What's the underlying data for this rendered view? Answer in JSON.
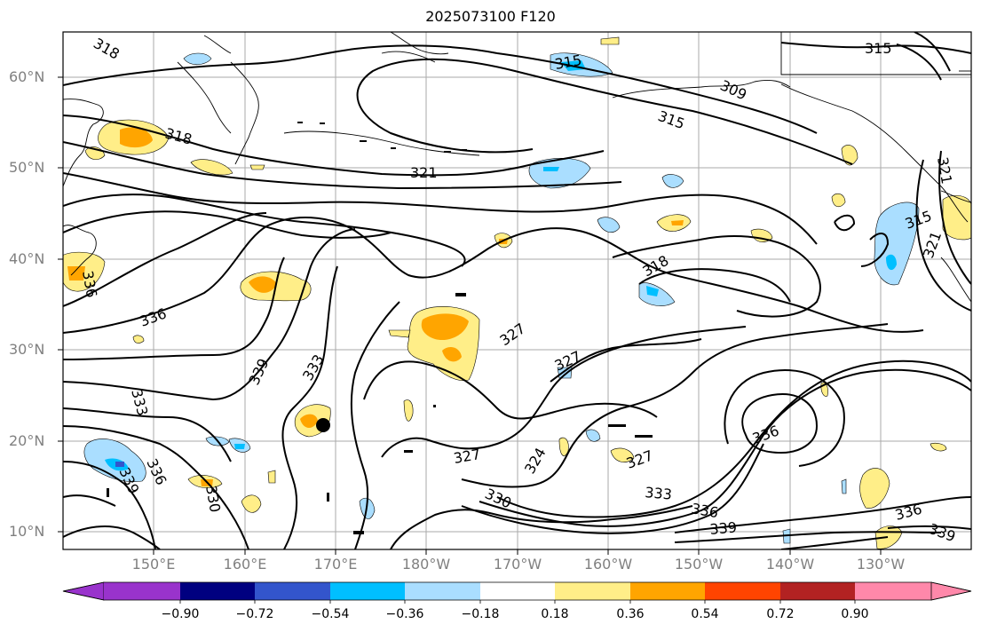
{
  "title": "2025073100 F120",
  "lat_labels": [
    "60°N",
    "50°N",
    "40°N",
    "30°N",
    "20°N",
    "10°N"
  ],
  "lon_labels": [
    "150°E",
    "160°E",
    "170°E",
    "180°W",
    "170°W",
    "160°W",
    "150°W",
    "140°W",
    "130°W"
  ],
  "colorbar": {
    "ticks": [
      "−0.90",
      "−0.72",
      "−0.54",
      "−0.36",
      "−0.18",
      "0.18",
      "0.36",
      "0.54",
      "0.72",
      "0.90"
    ],
    "colors": [
      "#9933cc",
      "#000080",
      "#3355cc",
      "#00bfff",
      "#aadeff",
      "#ffffff",
      "#ffee88",
      "#ffa500",
      "#ff4400",
      "#b22222",
      "#ff88aa"
    ]
  },
  "contour_labels": [
    "318",
    "318",
    "321",
    "315",
    "309",
    "315",
    "321",
    "315",
    "321",
    "336",
    "336",
    "339",
    "333",
    "333",
    "336",
    "339",
    "330",
    "318",
    "327",
    "327",
    "327",
    "324",
    "327",
    "330",
    "333",
    "336",
    "336",
    "339",
    "336",
    "339",
    "315"
  ],
  "marker": "black-dot"
}
